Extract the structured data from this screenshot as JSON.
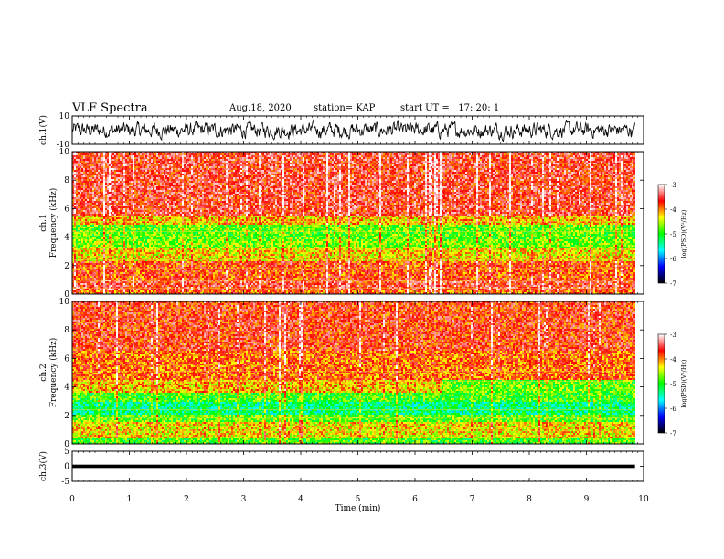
{
  "header": {
    "title": "VLF Spectra",
    "date": "Aug.18, 2020",
    "station": "station= KAP",
    "start": "start UT =   17: 20: 1"
  },
  "chart_data": [
    {
      "type": "line",
      "panel": "ch1-waveform",
      "ylabel": "ch.1(V)",
      "ylim": [
        -10,
        10
      ],
      "yticks": [
        "10",
        "-10"
      ],
      "xlim": [
        0,
        10
      ],
      "note": "dense noise waveform, amplitude roughly within -7..7 V",
      "line_color": "#000000"
    },
    {
      "type": "heatmap",
      "panel": "ch1-spectrogram",
      "ylabel": "ch.1\nFrequency (kHz)",
      "ylabel_lines": [
        "ch.1",
        "Frequency (kHz)"
      ],
      "ylim": [
        0,
        10
      ],
      "yticks": [
        "0",
        "2",
        "4",
        "6",
        "8",
        "10"
      ],
      "xlim": [
        0,
        10
      ],
      "data_end_min": 9.85,
      "bands": [
        {
          "from": 0.0,
          "to": 0.3,
          "level": -3.9
        },
        {
          "from": 0.3,
          "to": 1.0,
          "level": -3.6
        },
        {
          "from": 1.0,
          "to": 2.3,
          "level": -3.8
        },
        {
          "from": 2.3,
          "to": 3.2,
          "level": -4.3
        },
        {
          "from": 3.2,
          "to": 3.8,
          "level": -4.7
        },
        {
          "from": 3.8,
          "to": 4.9,
          "level": -4.8
        },
        {
          "from": 4.9,
          "to": 5.5,
          "level": -4.2
        },
        {
          "from": 5.5,
          "to": 10.0,
          "level": -3.6
        }
      ],
      "colorbar": {
        "label": "log(PSD)(V²/Hz)",
        "range": [
          -7,
          -3
        ],
        "ticks": [
          "-3",
          "-4",
          "-5",
          "-6",
          "-7"
        ],
        "colors": [
          "#ffffff",
          "#ff0000",
          "#ffff00",
          "#00ff00",
          "#00ffff",
          "#0000ff",
          "#000000"
        ]
      }
    },
    {
      "type": "heatmap",
      "panel": "ch2-spectrogram",
      "ylabel": "ch.2\nFrequency (kHz)",
      "ylabel_lines": [
        "ch.2",
        "Frequency (kHz)"
      ],
      "ylim": [
        0,
        10
      ],
      "yticks": [
        "0",
        "2",
        "4",
        "6",
        "8",
        "10"
      ],
      "xlim": [
        0,
        10
      ],
      "data_end_min": 9.85,
      "bands": [
        {
          "from": 0.0,
          "to": 0.4,
          "level": -4.9
        },
        {
          "from": 0.4,
          "to": 1.5,
          "level": -4.3
        },
        {
          "from": 1.5,
          "to": 2.0,
          "level": -4.8
        },
        {
          "from": 2.0,
          "to": 3.0,
          "level": -5.3
        },
        {
          "from": 3.0,
          "to": 3.6,
          "level": -4.9
        },
        {
          "from": 3.6,
          "to": 4.5,
          "level": -4.2
        },
        {
          "from": 4.5,
          "to": 6.5,
          "level": -3.9
        },
        {
          "from": 6.5,
          "to": 10.0,
          "level": -3.7
        }
      ],
      "colorbar": {
        "label": "log(PSD)(V²/Hz)",
        "range": [
          -7,
          -3
        ],
        "ticks": [
          "-3",
          "-4",
          "-5",
          "-6",
          "-7"
        ],
        "colors": [
          "#ffffff",
          "#ff0000",
          "#ffff00",
          "#00ff00",
          "#00ffff",
          "#0000ff",
          "#000000"
        ]
      }
    },
    {
      "type": "line",
      "panel": "ch3-waveform",
      "ylabel": "ch.3(V)",
      "ylim": [
        -5,
        5
      ],
      "yticks": [
        "5",
        "0",
        "-5"
      ],
      "xlim": [
        0,
        10
      ],
      "values": {
        "level": 0,
        "band_width_v": 1.1
      },
      "note": "flat thick trace near 0 V",
      "line_color": "#000000"
    }
  ],
  "xaxis": {
    "label": "Time (min)",
    "ticks": [
      "0",
      "1",
      "2",
      "3",
      "4",
      "5",
      "6",
      "7",
      "8",
      "9",
      "10"
    ]
  }
}
